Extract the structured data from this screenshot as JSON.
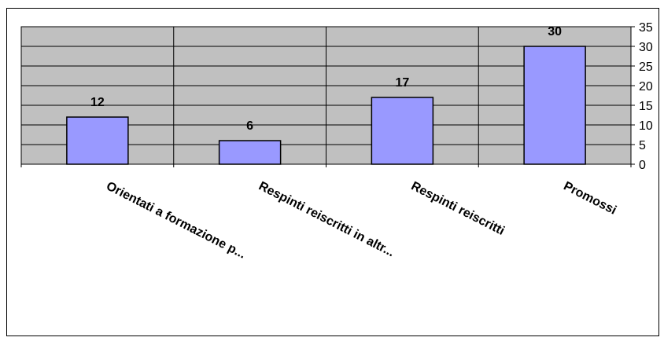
{
  "chart_data": {
    "type": "bar",
    "categories": [
      "Orientati a formazione p...",
      "Respinti reiscritti in altr...",
      "Respinti reiscritti",
      "Promossi"
    ],
    "values": [
      12,
      6,
      17,
      30
    ],
    "data_labels": [
      "12",
      "6",
      "17",
      "30"
    ],
    "y_ticks": [
      "0",
      "5",
      "10",
      "15",
      "20",
      "25",
      "30",
      "35"
    ],
    "ylim": [
      0,
      35
    ],
    "y_axis_side": "right",
    "grid": true,
    "legend": false,
    "colors": {
      "plot_background": "#c0c0c0",
      "bar_fill": "#9999ff",
      "bar_stroke": "#000000",
      "gridline": "#000000"
    }
  }
}
